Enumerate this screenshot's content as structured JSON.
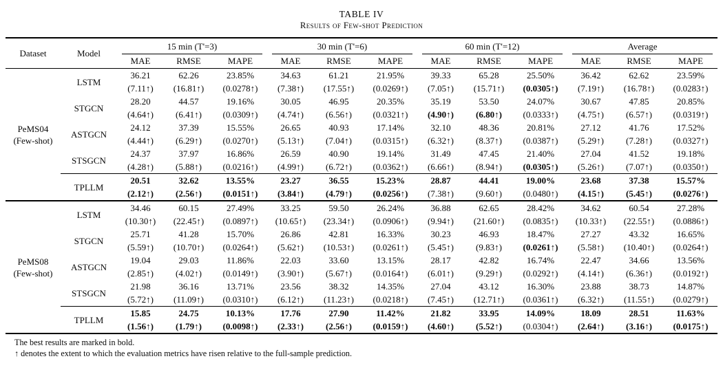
{
  "caption": {
    "title": "TABLE IV",
    "subtitle": "Results of Few-shot Prediction"
  },
  "table": {
    "header": {
      "dataset": "Dataset",
      "model": "Model",
      "groups": [
        "15 min (T'=3)",
        "30 min (T'=6)",
        "60 min (T'=12)",
        "Average"
      ],
      "metrics": [
        "MAE",
        "RMSE",
        "MAPE"
      ]
    },
    "blocks": [
      {
        "dataset_lines": [
          "PeMS04",
          "(Few-shot)"
        ],
        "models": [
          {
            "name": "LSTM",
            "values": [
              "36.21",
              "62.26",
              "23.85%",
              "34.63",
              "61.21",
              "21.95%",
              "39.33",
              "65.28",
              "25.50%",
              "36.42",
              "62.62",
              "23.59%"
            ],
            "values_bold": false,
            "deltas": [
              "(7.11↑)",
              "(16.81↑)",
              "(0.0278↑)",
              "(7.38↑)",
              "(17.55↑)",
              "(0.0269↑)",
              "(7.05↑)",
              "(15.71↑)",
              "(0.0305↑)",
              "(7.19↑)",
              "(16.78↑)",
              "(0.0283↑)"
            ],
            "deltas_bold": [
              0,
              0,
              0,
              0,
              0,
              0,
              0,
              0,
              1,
              0,
              0,
              0
            ],
            "top_rule": false
          },
          {
            "name": "STGCN",
            "values": [
              "28.20",
              "44.57",
              "19.16%",
              "30.05",
              "46.95",
              "20.35%",
              "35.19",
              "53.50",
              "24.07%",
              "30.67",
              "47.85",
              "20.85%"
            ],
            "values_bold": false,
            "deltas": [
              "(4.64↑)",
              "(6.41↑)",
              "(0.0309↑)",
              "(4.74↑)",
              "(6.56↑)",
              "(0.0321↑)",
              "(4.90↑)",
              "(6.80↑)",
              "(0.0333↑)",
              "(4.75↑)",
              "(6.57↑)",
              "(0.0319↑)"
            ],
            "deltas_bold": [
              0,
              0,
              0,
              0,
              0,
              0,
              1,
              1,
              0,
              0,
              0,
              0
            ],
            "top_rule": false
          },
          {
            "name": "ASTGCN",
            "values": [
              "24.12",
              "37.39",
              "15.55%",
              "26.65",
              "40.93",
              "17.14%",
              "32.10",
              "48.36",
              "20.81%",
              "27.12",
              "41.76",
              "17.52%"
            ],
            "values_bold": false,
            "deltas": [
              "(4.44↑)",
              "(6.29↑)",
              "(0.0270↑)",
              "(5.13↑)",
              "(7.04↑)",
              "(0.0315↑)",
              "(6.32↑)",
              "(8.37↑)",
              "(0.0387↑)",
              "(5.29↑)",
              "(7.28↑)",
              "(0.0327↑)"
            ],
            "deltas_bold": [
              0,
              0,
              0,
              0,
              0,
              0,
              0,
              0,
              0,
              0,
              0,
              0
            ],
            "top_rule": false
          },
          {
            "name": "STSGCN",
            "values": [
              "24.37",
              "37.97",
              "16.86%",
              "26.59",
              "40.90",
              "19.14%",
              "31.49",
              "47.45",
              "21.40%",
              "27.04",
              "41.52",
              "19.18%"
            ],
            "values_bold": false,
            "deltas": [
              "(4.28↑)",
              "(5.88↑)",
              "(0.0216↑)",
              "(4.99↑)",
              "(6.72↑)",
              "(0.0362↑)",
              "(6.66↑)",
              "(8.94↑)",
              "(0.0305↑)",
              "(5.26↑)",
              "(7.07↑)",
              "(0.0350↑)"
            ],
            "deltas_bold": [
              0,
              0,
              0,
              0,
              0,
              0,
              0,
              0,
              1,
              0,
              0,
              0
            ],
            "top_rule": false
          },
          {
            "name": "TPLLM",
            "values": [
              "20.51",
              "32.62",
              "13.55%",
              "23.27",
              "36.55",
              "15.23%",
              "28.87",
              "44.41",
              "19.00%",
              "23.68",
              "37.38",
              "15.57%"
            ],
            "values_bold": true,
            "deltas": [
              "(2.12↑)",
              "(2.56↑)",
              "(0.0151↑)",
              "(3.84↑)",
              "(4.79↑)",
              "(0.0256↑)",
              "(7.38↑)",
              "(9.60↑)",
              "(0.0480↑)",
              "(4.15↑)",
              "(5.45↑)",
              "(0.0276↑)"
            ],
            "deltas_bold": [
              1,
              1,
              1,
              1,
              1,
              1,
              0,
              0,
              0,
              1,
              1,
              1
            ],
            "top_rule": true
          }
        ]
      },
      {
        "dataset_lines": [
          "PeMS08",
          "(Few-shot)"
        ],
        "models": [
          {
            "name": "LSTM",
            "values": [
              "34.46",
              "60.15",
              "27.49%",
              "33.25",
              "59.50",
              "26.24%",
              "36.88",
              "62.65",
              "28.42%",
              "34.62",
              "60.54",
              "27.28%"
            ],
            "values_bold": false,
            "deltas": [
              "(10.30↑)",
              "(22.45↑)",
              "(0.0897↑)",
              "(10.65↑)",
              "(23.34↑)",
              "(0.0906↑)",
              "(9.94↑)",
              "(21.60↑)",
              "(0.0835↑)",
              "(10.33↑)",
              "(22.55↑)",
              "(0.0886↑)"
            ],
            "deltas_bold": [
              0,
              0,
              0,
              0,
              0,
              0,
              0,
              0,
              0,
              0,
              0,
              0
            ],
            "top_rule": false
          },
          {
            "name": "STGCN",
            "values": [
              "25.71",
              "41.28",
              "15.70%",
              "26.86",
              "42.81",
              "16.33%",
              "30.23",
              "46.93",
              "18.47%",
              "27.27",
              "43.32",
              "16.65%"
            ],
            "values_bold": false,
            "deltas": [
              "(5.59↑)",
              "(10.70↑)",
              "(0.0264↑)",
              "(5.62↑)",
              "(10.53↑)",
              "(0.0261↑)",
              "(5.45↑)",
              "(9.83↑)",
              "(0.0261↑)",
              "(5.58↑)",
              "(10.40↑)",
              "(0.0264↑)"
            ],
            "deltas_bold": [
              0,
              0,
              0,
              0,
              0,
              0,
              0,
              0,
              1,
              0,
              0,
              0
            ],
            "top_rule": false
          },
          {
            "name": "ASTGCN",
            "values": [
              "19.04",
              "29.03",
              "11.86%",
              "22.03",
              "33.60",
              "13.15%",
              "28.17",
              "42.82",
              "16.74%",
              "22.47",
              "34.66",
              "13.56%"
            ],
            "values_bold": false,
            "deltas": [
              "(2.85↑)",
              "(4.02↑)",
              "(0.0149↑)",
              "(3.90↑)",
              "(5.67↑)",
              "(0.0164↑)",
              "(6.01↑)",
              "(9.29↑)",
              "(0.0292↑)",
              "(4.14↑)",
              "(6.36↑)",
              "(0.0192↑)"
            ],
            "deltas_bold": [
              0,
              0,
              0,
              0,
              0,
              0,
              0,
              0,
              0,
              0,
              0,
              0
            ],
            "top_rule": false
          },
          {
            "name": "STSGCN",
            "values": [
              "21.98",
              "36.16",
              "13.71%",
              "23.56",
              "38.32",
              "14.35%",
              "27.04",
              "43.12",
              "16.30%",
              "23.88",
              "38.73",
              "14.87%"
            ],
            "values_bold": false,
            "deltas": [
              "(5.72↑)",
              "(11.09↑)",
              "(0.0310↑)",
              "(6.12↑)",
              "(11.23↑)",
              "(0.0218↑)",
              "(7.45↑)",
              "(12.71↑)",
              "(0.0361↑)",
              "(6.32↑)",
              "(11.55↑)",
              "(0.0279↑)"
            ],
            "deltas_bold": [
              0,
              0,
              0,
              0,
              0,
              0,
              0,
              0,
              0,
              0,
              0,
              0
            ],
            "top_rule": false
          },
          {
            "name": "TPLLM",
            "values": [
              "15.85",
              "24.75",
              "10.13%",
              "17.76",
              "27.90",
              "11.42%",
              "21.82",
              "33.95",
              "14.09%",
              "18.09",
              "28.51",
              "11.63%"
            ],
            "values_bold": true,
            "deltas": [
              "(1.56↑)",
              "(1.79↑)",
              "(0.0098↑)",
              "(2.33↑)",
              "(2.56↑)",
              "(0.0159↑)",
              "(4.60↑)",
              "(5.52↑)",
              "(0.0304↑)",
              "(2.64↑)",
              "(3.16↑)",
              "(0.0175↑)"
            ],
            "deltas_bold": [
              1,
              1,
              1,
              1,
              1,
              1,
              1,
              1,
              0,
              1,
              1,
              1
            ],
            "top_rule": true
          }
        ]
      }
    ]
  },
  "footnotes": [
    "The best results are marked in bold.",
    "↑ denotes the extent to which the evaluation metrics have risen relative to the full-sample prediction."
  ]
}
